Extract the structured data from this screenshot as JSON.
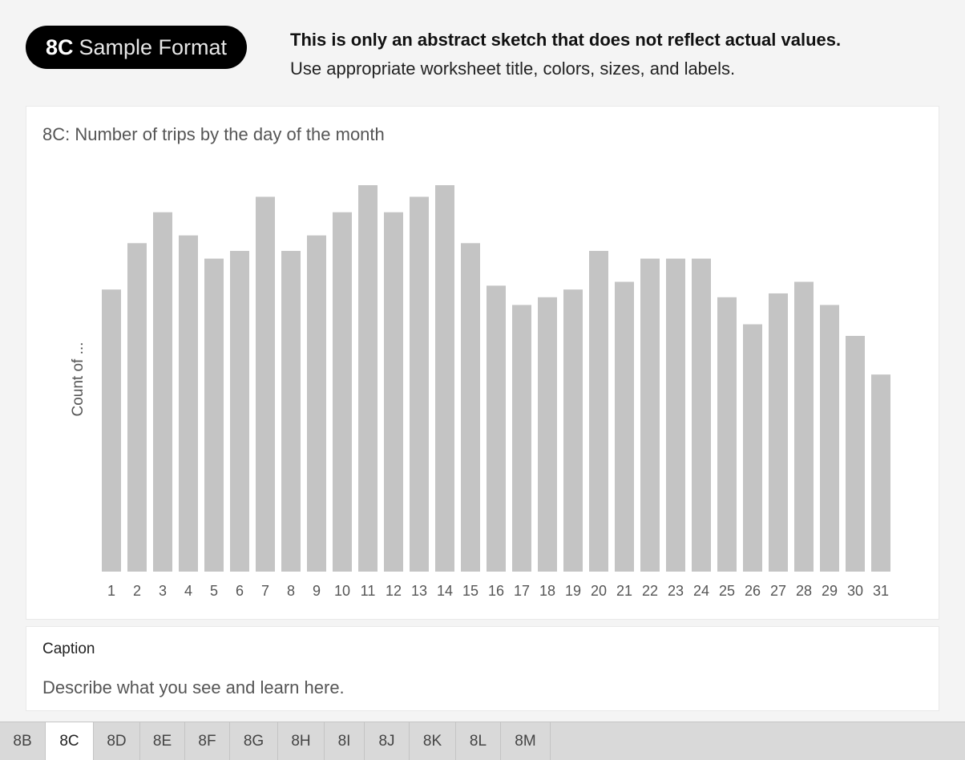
{
  "badge": {
    "strong": "8C",
    "light": "Sample Format"
  },
  "notes": {
    "line1": "This is only an abstract sketch that does not reflect actual values.",
    "line2": "Use appropriate worksheet title, colors, sizes, and labels."
  },
  "chart_data": {
    "type": "bar",
    "title": "8C: Number of trips by the day of the month",
    "xlabel": "",
    "ylabel": "Count of ...",
    "bar_color": "#c4c4c4",
    "categories": [
      "1",
      "2",
      "3",
      "4",
      "5",
      "6",
      "7",
      "8",
      "9",
      "10",
      "11",
      "12",
      "13",
      "14",
      "15",
      "16",
      "17",
      "18",
      "19",
      "20",
      "21",
      "22",
      "23",
      "24",
      "25",
      "26",
      "27",
      "28",
      "29",
      "30",
      "31"
    ],
    "values": [
      73,
      85,
      93,
      87,
      81,
      83,
      97,
      83,
      87,
      93,
      100,
      93,
      97,
      100,
      85,
      74,
      69,
      71,
      73,
      83,
      75,
      81,
      81,
      81,
      71,
      64,
      72,
      75,
      69,
      61,
      51
    ],
    "ylim": [
      0,
      100
    ],
    "grid": false,
    "legend": "none"
  },
  "caption": {
    "label": "Caption",
    "text": "Describe what you see and learn here."
  },
  "tabs": [
    {
      "label": "8B",
      "active": false
    },
    {
      "label": "8C",
      "active": true
    },
    {
      "label": "8D",
      "active": false
    },
    {
      "label": "8E",
      "active": false
    },
    {
      "label": "8F",
      "active": false
    },
    {
      "label": "8G",
      "active": false
    },
    {
      "label": "8H",
      "active": false
    },
    {
      "label": "8I",
      "active": false
    },
    {
      "label": "8J",
      "active": false
    },
    {
      "label": "8K",
      "active": false
    },
    {
      "label": "8L",
      "active": false
    },
    {
      "label": "8M",
      "active": false
    }
  ]
}
